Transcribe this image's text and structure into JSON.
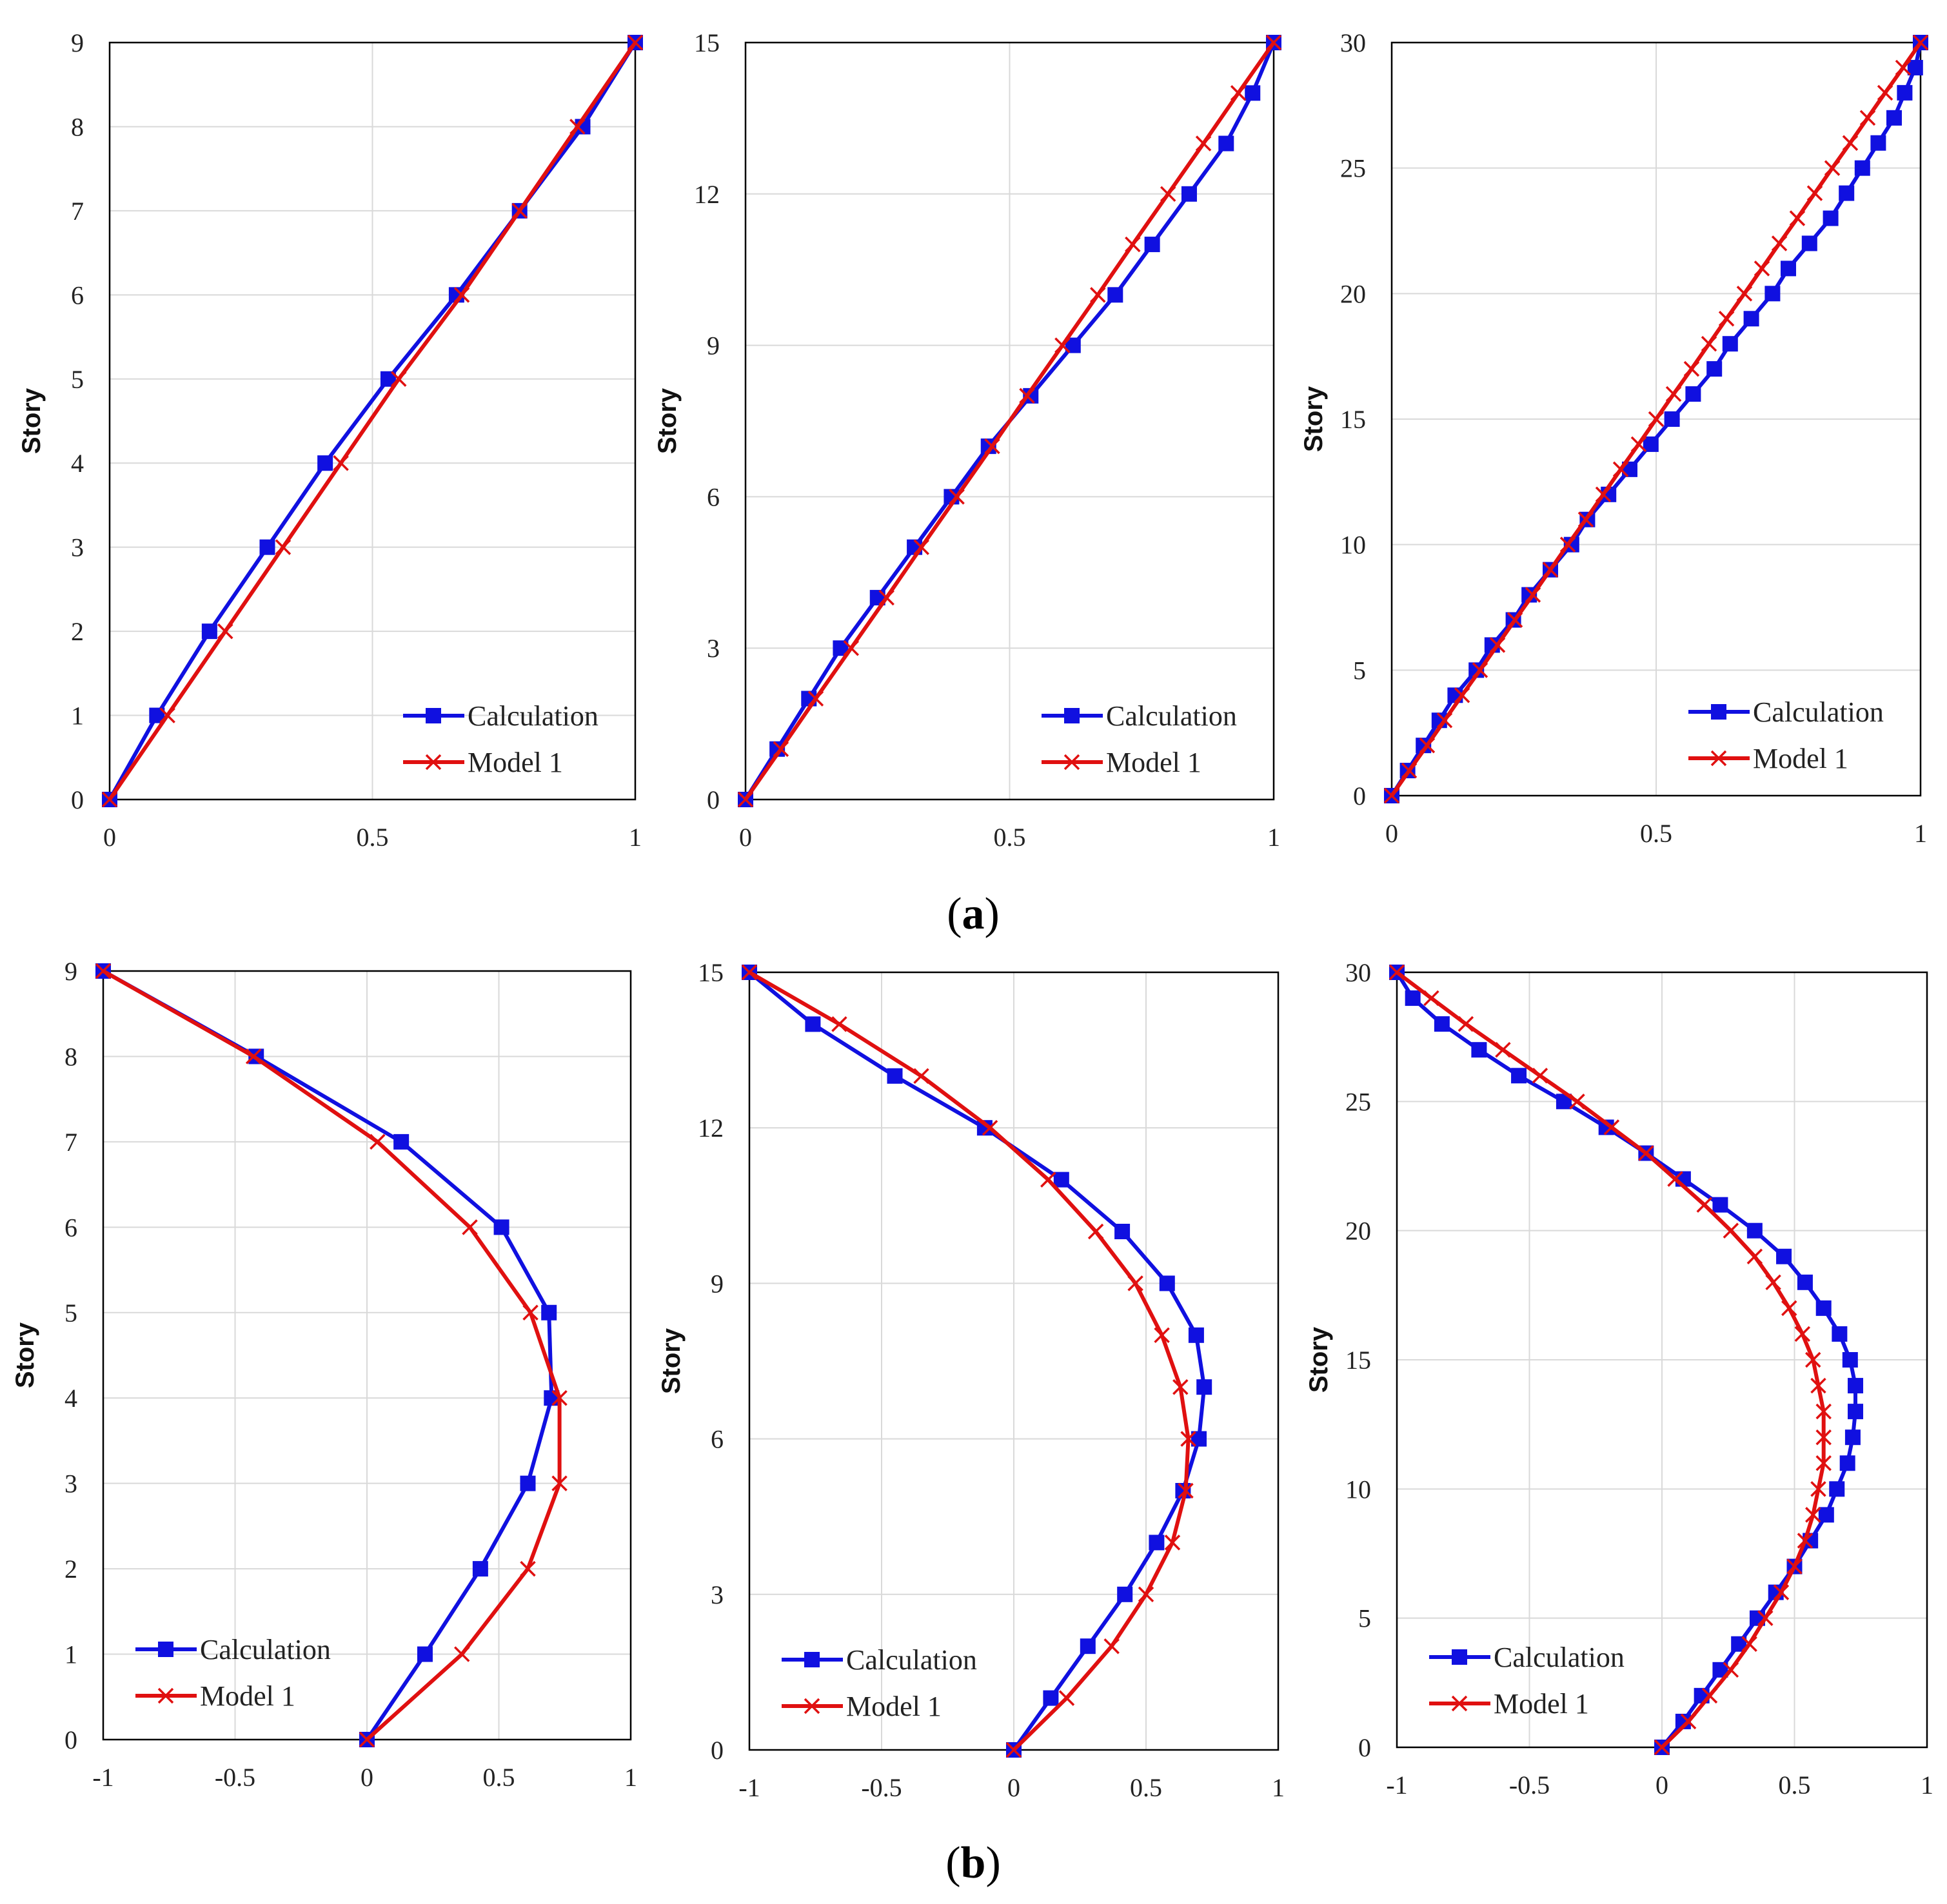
{
  "figure": {
    "label_a_open": "(",
    "label_a_letter": "a",
    "label_a_close": ")",
    "label_b_open": "(",
    "label_b_letter": "b",
    "label_b_close": ")"
  },
  "colors": {
    "calculation": "#1010e0",
    "model": "#e01010",
    "grid": "#d9d9d9",
    "frame": "#000000"
  },
  "legend": {
    "calculation": "Calculation",
    "model": "Model 1"
  },
  "chart_data": [
    {
      "id": "a1",
      "type": "line",
      "ylabel": "Story",
      "xlabel": "",
      "xlim": [
        0,
        1
      ],
      "ylim": [
        0,
        9
      ],
      "xticks": [
        0,
        0.5,
        1
      ],
      "xtick_labels": [
        "0",
        "0.5",
        "1"
      ],
      "yticks": [
        0,
        1,
        2,
        3,
        4,
        5,
        6,
        7,
        8,
        9
      ],
      "legend_position": "bottom-right",
      "series": [
        {
          "name": "Calculation",
          "y": [
            0,
            1,
            2,
            3,
            4,
            5,
            6,
            7,
            8,
            9
          ],
          "x": [
            0,
            0.09,
            0.19,
            0.3,
            0.41,
            0.53,
            0.66,
            0.78,
            0.9,
            1.0
          ]
        },
        {
          "name": "Model 1",
          "y": [
            0,
            1,
            2,
            3,
            4,
            5,
            6,
            7,
            8,
            9
          ],
          "x": [
            0,
            0.11,
            0.22,
            0.33,
            0.44,
            0.55,
            0.67,
            0.78,
            0.89,
            1.0
          ]
        }
      ]
    },
    {
      "id": "a2",
      "type": "line",
      "ylabel": "Story",
      "xlabel": "",
      "xlim": [
        0,
        1
      ],
      "ylim": [
        0,
        15
      ],
      "xticks": [
        0,
        0.5,
        1
      ],
      "xtick_labels": [
        "0",
        "0.5",
        "1"
      ],
      "yticks": [
        0,
        3,
        6,
        9,
        12,
        15
      ],
      "legend_position": "bottom-right",
      "series": [
        {
          "name": "Calculation",
          "y": [
            0,
            1,
            2,
            3,
            4,
            5,
            6,
            7,
            8,
            9,
            10,
            11,
            12,
            13,
            14,
            15
          ],
          "x": [
            0,
            0.06,
            0.12,
            0.18,
            0.25,
            0.32,
            0.39,
            0.46,
            0.54,
            0.62,
            0.7,
            0.77,
            0.84,
            0.91,
            0.96,
            1.0
          ]
        },
        {
          "name": "Model 1",
          "y": [
            0,
            1,
            2,
            3,
            4,
            5,
            6,
            7,
            8,
            9,
            10,
            11,
            12,
            13,
            14,
            15
          ],
          "x": [
            0,
            0.067,
            0.133,
            0.2,
            0.267,
            0.333,
            0.4,
            0.467,
            0.533,
            0.6,
            0.667,
            0.733,
            0.8,
            0.867,
            0.933,
            1.0
          ]
        }
      ]
    },
    {
      "id": "a3",
      "type": "line",
      "ylabel": "Story",
      "xlabel": "",
      "xlim": [
        0,
        1
      ],
      "ylim": [
        0,
        30
      ],
      "xticks": [
        0,
        0.5,
        1
      ],
      "xtick_labels": [
        "0",
        "0.5",
        "1"
      ],
      "yticks": [
        0,
        5,
        10,
        15,
        20,
        25,
        30
      ],
      "legend_position": "bottom-right",
      "series": [
        {
          "name": "Calculation",
          "y": [
            0,
            1,
            2,
            3,
            4,
            5,
            6,
            7,
            8,
            9,
            10,
            11,
            12,
            13,
            14,
            15,
            16,
            17,
            18,
            19,
            20,
            21,
            22,
            23,
            24,
            25,
            26,
            27,
            28,
            29,
            30
          ],
          "x": [
            0,
            0.03,
            0.06,
            0.09,
            0.12,
            0.16,
            0.19,
            0.23,
            0.26,
            0.3,
            0.34,
            0.37,
            0.41,
            0.45,
            0.49,
            0.53,
            0.57,
            0.61,
            0.64,
            0.68,
            0.72,
            0.75,
            0.79,
            0.83,
            0.86,
            0.89,
            0.92,
            0.95,
            0.97,
            0.99,
            1.0
          ]
        },
        {
          "name": "Model 1",
          "y": [
            0,
            1,
            2,
            3,
            4,
            5,
            6,
            7,
            8,
            9,
            10,
            11,
            12,
            13,
            14,
            15,
            16,
            17,
            18,
            19,
            20,
            21,
            22,
            23,
            24,
            25,
            26,
            27,
            28,
            29,
            30
          ],
          "x": [
            0,
            0.033,
            0.067,
            0.1,
            0.133,
            0.167,
            0.2,
            0.233,
            0.267,
            0.3,
            0.333,
            0.367,
            0.4,
            0.433,
            0.467,
            0.5,
            0.533,
            0.567,
            0.6,
            0.633,
            0.667,
            0.7,
            0.733,
            0.767,
            0.8,
            0.833,
            0.867,
            0.9,
            0.933,
            0.967,
            1.0
          ]
        }
      ]
    },
    {
      "id": "b1",
      "type": "line",
      "ylabel": "Story",
      "xlabel": "",
      "xlim": [
        -1,
        1
      ],
      "ylim": [
        0,
        9
      ],
      "xticks": [
        -1,
        -0.5,
        0,
        0.5,
        1
      ],
      "xtick_labels": [
        "-1",
        "-0.5",
        "0",
        "0.5",
        "1"
      ],
      "yticks": [
        0,
        1,
        2,
        3,
        4,
        5,
        6,
        7,
        8,
        9
      ],
      "legend_position": "bottom-left",
      "series": [
        {
          "name": "Calculation",
          "y": [
            0,
            1,
            2,
            3,
            4,
            5,
            6,
            7,
            8,
            9
          ],
          "x": [
            0,
            0.22,
            0.43,
            0.61,
            0.7,
            0.69,
            0.51,
            0.13,
            -0.42,
            -1.0
          ]
        },
        {
          "name": "Model 1",
          "y": [
            0,
            1,
            2,
            3,
            4,
            5,
            6,
            7,
            8,
            9
          ],
          "x": [
            0,
            0.36,
            0.61,
            0.73,
            0.73,
            0.62,
            0.39,
            0.04,
            -0.43,
            -1.0
          ]
        }
      ]
    },
    {
      "id": "b2",
      "type": "line",
      "ylabel": "Story",
      "xlabel": "",
      "xlim": [
        -1,
        1
      ],
      "ylim": [
        0,
        15
      ],
      "xticks": [
        -1,
        -0.5,
        0,
        0.5,
        1
      ],
      "xtick_labels": [
        "-1",
        "-0.5",
        "0",
        "0.5",
        "1"
      ],
      "yticks": [
        0,
        3,
        6,
        9,
        12,
        15
      ],
      "legend_position": "bottom-left",
      "series": [
        {
          "name": "Calculation",
          "y": [
            0,
            1,
            2,
            3,
            4,
            5,
            6,
            7,
            8,
            9,
            10,
            11,
            12,
            13,
            14,
            15
          ],
          "x": [
            0,
            0.14,
            0.28,
            0.42,
            0.54,
            0.64,
            0.7,
            0.72,
            0.69,
            0.58,
            0.41,
            0.18,
            -0.11,
            -0.45,
            -0.76,
            -1.0
          ]
        },
        {
          "name": "Model 1",
          "y": [
            0,
            1,
            2,
            3,
            4,
            5,
            6,
            7,
            8,
            9,
            10,
            11,
            12,
            13,
            14,
            15
          ],
          "x": [
            0,
            0.2,
            0.37,
            0.5,
            0.6,
            0.65,
            0.66,
            0.63,
            0.56,
            0.46,
            0.31,
            0.13,
            -0.09,
            -0.35,
            -0.66,
            -1.0
          ]
        }
      ]
    },
    {
      "id": "b3",
      "type": "line",
      "ylabel": "Story",
      "xlabel": "",
      "xlim": [
        -1,
        1
      ],
      "ylim": [
        0,
        30
      ],
      "xticks": [
        -1,
        -0.5,
        0,
        0.5,
        1
      ],
      "xtick_labels": [
        "-1",
        "-0.5",
        "0",
        "0.5",
        "1"
      ],
      "yticks": [
        0,
        5,
        10,
        15,
        20,
        25,
        30
      ],
      "legend_position": "bottom-left",
      "series": [
        {
          "name": "Calculation",
          "y": [
            0,
            1,
            2,
            3,
            4,
            5,
            6,
            7,
            8,
            9,
            10,
            11,
            12,
            13,
            14,
            15,
            16,
            17,
            18,
            19,
            20,
            21,
            22,
            23,
            24,
            25,
            26,
            27,
            28,
            29,
            30
          ],
          "x": [
            0,
            0.08,
            0.15,
            0.22,
            0.29,
            0.36,
            0.43,
            0.5,
            0.56,
            0.62,
            0.66,
            0.7,
            0.72,
            0.73,
            0.73,
            0.71,
            0.67,
            0.61,
            0.54,
            0.46,
            0.35,
            0.22,
            0.08,
            -0.06,
            -0.21,
            -0.37,
            -0.54,
            -0.69,
            -0.83,
            -0.94,
            -1.0
          ]
        },
        {
          "name": "Model 1",
          "y": [
            0,
            1,
            2,
            3,
            4,
            5,
            6,
            7,
            8,
            9,
            10,
            11,
            12,
            13,
            14,
            15,
            16,
            17,
            18,
            19,
            20,
            21,
            22,
            23,
            24,
            25,
            26,
            27,
            28,
            29,
            30
          ],
          "x": [
            0,
            0.1,
            0.18,
            0.26,
            0.33,
            0.39,
            0.45,
            0.5,
            0.54,
            0.57,
            0.59,
            0.61,
            0.61,
            0.61,
            0.59,
            0.57,
            0.53,
            0.48,
            0.42,
            0.35,
            0.26,
            0.16,
            0.05,
            -0.06,
            -0.19,
            -0.32,
            -0.46,
            -0.6,
            -0.74,
            -0.87,
            -1.0
          ]
        }
      ]
    }
  ]
}
